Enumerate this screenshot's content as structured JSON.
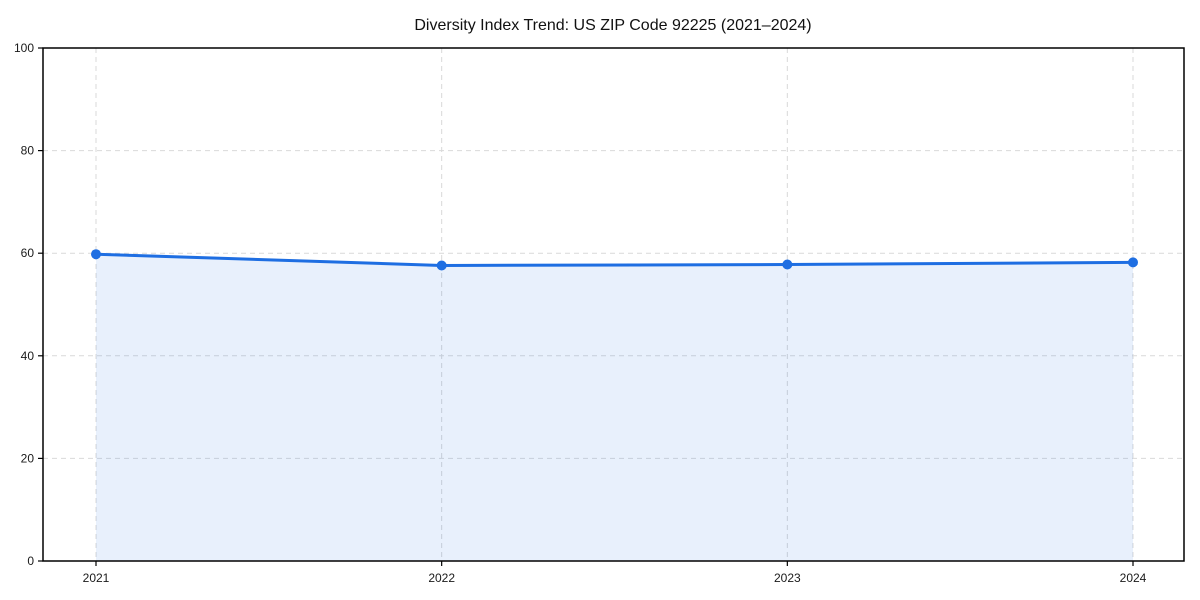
{
  "figure": {
    "title": "Diversity Index Trend: US ZIP Code 92225 (2021–2024)"
  },
  "chart_data": {
    "type": "area",
    "x": [
      "2021",
      "2022",
      "2023",
      "2024"
    ],
    "series": [
      {
        "name": "Diversity Index",
        "values": [
          59.8,
          57.6,
          57.8,
          58.2
        ]
      }
    ],
    "title": "Diversity Index Trend: US ZIP Code 92225 (2021–2024)",
    "xlabel": "",
    "ylabel": "",
    "ylim": [
      0,
      100
    ],
    "yticks": [
      0,
      20,
      40,
      60,
      80,
      100
    ],
    "grid": true,
    "grid_style": "dashed",
    "legend_position": "none",
    "colors": {
      "line": "#1e6ee2",
      "marker": "#1e6ee2",
      "fill": "#1e6ee2",
      "fill_opacity": 0.1,
      "grid": "#d9d9d9",
      "axis": "#000000",
      "tick_label": "#1a1a1a",
      "title": "#111111",
      "background": "#ffffff"
    }
  }
}
